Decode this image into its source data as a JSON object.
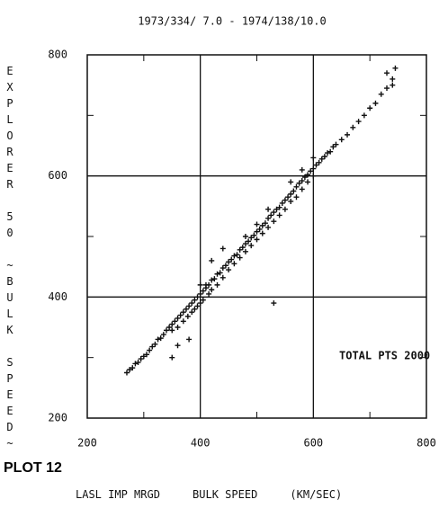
{
  "chart_data": {
    "type": "scatter",
    "title": "1973/334/ 7.0 - 1974/138/10.0",
    "y_label": "EXPLORER 50 ~BULK SPEED~",
    "x_label": "LASL IMP MRGD     BULK SPEED     (KM/SEC)",
    "plot_label": "PLOT 12",
    "annotation": "TOTAL PTS 2000",
    "color": "#111111",
    "grid": true,
    "xlim": [
      200,
      800
    ],
    "ylim": [
      200,
      800
    ],
    "xticks": [
      200,
      400,
      600,
      800
    ],
    "yticks": [
      200,
      400,
      600,
      800
    ],
    "minor_xticks": [
      300,
      500,
      700
    ],
    "minor_yticks": [
      300,
      500,
      700
    ],
    "x": [
      270,
      275,
      280,
      285,
      290,
      295,
      300,
      305,
      310,
      315,
      320,
      325,
      330,
      335,
      340,
      345,
      350,
      350,
      355,
      360,
      360,
      365,
      370,
      370,
      375,
      378,
      380,
      385,
      385,
      390,
      390,
      395,
      395,
      400,
      400,
      405,
      405,
      410,
      410,
      415,
      415,
      420,
      420,
      425,
      430,
      430,
      435,
      440,
      440,
      445,
      450,
      450,
      455,
      460,
      460,
      465,
      470,
      470,
      475,
      480,
      480,
      485,
      490,
      490,
      495,
      500,
      500,
      505,
      510,
      510,
      515,
      520,
      520,
      525,
      530,
      530,
      535,
      540,
      540,
      545,
      550,
      550,
      555,
      560,
      560,
      565,
      570,
      570,
      575,
      580,
      580,
      585,
      590,
      590,
      595,
      600,
      600,
      605,
      610,
      615,
      620,
      625,
      630,
      635,
      640,
      650,
      660,
      670,
      680,
      690,
      700,
      710,
      720,
      730,
      740,
      745,
      730,
      740,
      360,
      380,
      420,
      440,
      530,
      350,
      400,
      500,
      480,
      520,
      560,
      600,
      580
    ],
    "y": [
      275,
      280,
      283,
      290,
      292,
      298,
      302,
      305,
      312,
      318,
      322,
      330,
      332,
      338,
      345,
      350,
      355,
      345,
      360,
      365,
      350,
      370,
      375,
      360,
      380,
      368,
      385,
      390,
      375,
      395,
      380,
      400,
      385,
      405,
      390,
      410,
      395,
      415,
      420,
      420,
      405,
      428,
      412,
      430,
      438,
      420,
      440,
      448,
      432,
      452,
      458,
      445,
      462,
      468,
      455,
      470,
      478,
      465,
      482,
      488,
      475,
      492,
      498,
      485,
      502,
      508,
      495,
      512,
      518,
      505,
      522,
      530,
      515,
      535,
      540,
      525,
      545,
      548,
      535,
      555,
      560,
      545,
      565,
      570,
      558,
      575,
      582,
      565,
      588,
      592,
      578,
      598,
      602,
      590,
      608,
      612,
      600,
      618,
      622,
      628,
      632,
      638,
      640,
      648,
      652,
      660,
      668,
      680,
      690,
      700,
      712,
      720,
      735,
      745,
      760,
      778,
      770,
      750,
      320,
      330,
      460,
      480,
      390,
      300,
      420,
      520,
      500,
      545,
      590,
      630,
      610
    ]
  }
}
